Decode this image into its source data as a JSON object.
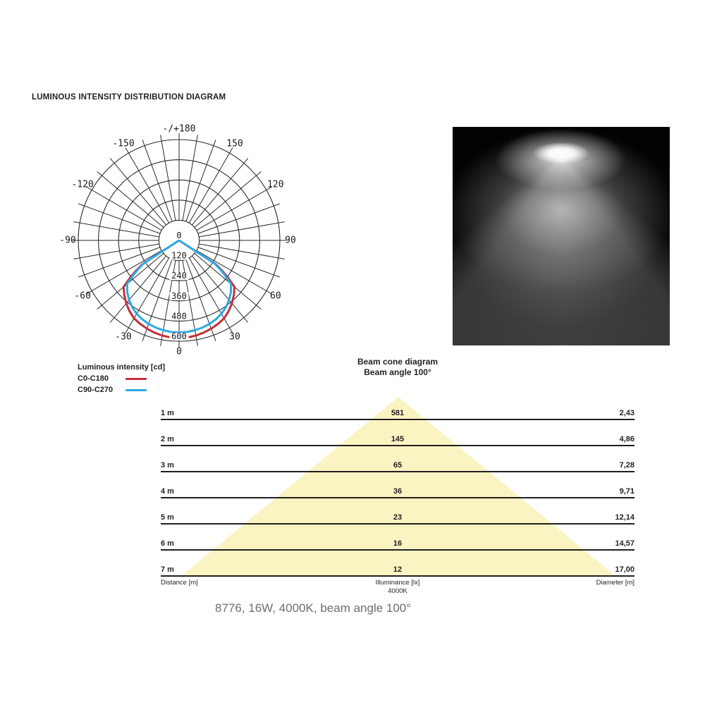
{
  "page": {
    "title": "LUMINOUS INTENSITY DISTRIBUTION DIAGRAM",
    "caption": "8776, 16W, 4000K, beam angle 100°"
  },
  "legend": {
    "title": "Luminous intensity [cd]",
    "series": [
      {
        "label": "C0-C180",
        "color": "#c5303a"
      },
      {
        "label": "C90-C270",
        "color": "#2baae2"
      }
    ]
  },
  "cone": {
    "title": "Beam cone diagram",
    "subtitle": "Beam angle 100°",
    "beam_color": "#faf4c2",
    "rows": [
      {
        "distance": "1 m",
        "illuminance": "581",
        "diameter": "2,43"
      },
      {
        "distance": "2 m",
        "illuminance": "145",
        "diameter": "4,86"
      },
      {
        "distance": "3 m",
        "illuminance": "65",
        "diameter": "7,28"
      },
      {
        "distance": "4 m",
        "illuminance": "36",
        "diameter": "9,71"
      },
      {
        "distance": "5 m",
        "illuminance": "23",
        "diameter": "12,14"
      },
      {
        "distance": "6 m",
        "illuminance": "16",
        "diameter": "14,57"
      },
      {
        "distance": "7 m",
        "illuminance": "12",
        "diameter": "17,00"
      }
    ],
    "footer": {
      "left": "Distance [m]",
      "center": "Illuminance [lx]",
      "center2": "4000K",
      "right": "Diameter [m]"
    }
  },
  "chart_data": [
    {
      "type": "line",
      "subtype": "polar-luminous-intensity",
      "title": "Luminous intensity [cd]",
      "radial_ticks_cd": [
        0,
        120,
        240,
        360,
        480,
        600
      ],
      "radial_max_cd": 600,
      "angle_step_deg": 10,
      "angle_labels": [
        {
          "deg": 0,
          "label": "0"
        },
        {
          "deg": 30,
          "label": "30"
        },
        {
          "deg": 60,
          "label": "60"
        },
        {
          "deg": 90,
          "label": "90"
        },
        {
          "deg": 120,
          "label": "120"
        },
        {
          "deg": 150,
          "label": "150"
        },
        {
          "deg": 180,
          "label": "-/+180"
        },
        {
          "deg": -30,
          "label": "-30"
        },
        {
          "deg": -60,
          "label": "-60"
        },
        {
          "deg": -90,
          "label": "-90"
        },
        {
          "deg": -120,
          "label": "-120"
        },
        {
          "deg": -150,
          "label": "-150"
        }
      ],
      "series": [
        {
          "name": "C0-C180",
          "color": "#c5303a",
          "points_deg_cd": [
            [
              -90,
              0
            ],
            [
              -57,
              261
            ],
            [
              -55,
              310
            ],
            [
              -53,
              360
            ],
            [
              -50,
              431
            ],
            [
              -45,
              461
            ],
            [
              -40,
              489
            ],
            [
              -35,
              514
            ],
            [
              -30,
              536
            ],
            [
              -25,
              548
            ],
            [
              -20,
              559
            ],
            [
              -15,
              568
            ],
            [
              -10,
              575
            ],
            [
              -5,
              580
            ],
            [
              0,
              581
            ],
            [
              5,
              580
            ],
            [
              10,
              575
            ],
            [
              15,
              568
            ],
            [
              20,
              559
            ],
            [
              25,
              548
            ],
            [
              30,
              536
            ],
            [
              35,
              514
            ],
            [
              40,
              489
            ],
            [
              45,
              461
            ],
            [
              50,
              431
            ],
            [
              53,
              360
            ],
            [
              55,
              310
            ],
            [
              57,
              261
            ],
            [
              90,
              0
            ]
          ]
        },
        {
          "name": "C90-C270",
          "color": "#2baae2",
          "points_deg_cd": [
            [
              -90,
              0
            ],
            [
              -57,
              250
            ],
            [
              -55,
              295
            ],
            [
              -53,
              338
            ],
            [
              -50,
              404
            ],
            [
              -45,
              436
            ],
            [
              -40,
              463
            ],
            [
              -35,
              486
            ],
            [
              -30,
              504
            ],
            [
              -25,
              518
            ],
            [
              -20,
              529
            ],
            [
              -15,
              537
            ],
            [
              -10,
              543
            ],
            [
              -5,
              547
            ],
            [
              0,
              548
            ],
            [
              5,
              547
            ],
            [
              10,
              543
            ],
            [
              15,
              537
            ],
            [
              20,
              529
            ],
            [
              25,
              518
            ],
            [
              30,
              504
            ],
            [
              35,
              486
            ],
            [
              40,
              463
            ],
            [
              45,
              436
            ],
            [
              50,
              404
            ],
            [
              53,
              338
            ],
            [
              55,
              295
            ],
            [
              57,
              250
            ],
            [
              90,
              0
            ]
          ]
        }
      ]
    },
    {
      "type": "table",
      "title": "Beam cone diagram",
      "subtitle": "Beam angle 100°",
      "columns": [
        "Distance [m]",
        "Illuminance [lx] 4000K",
        "Diameter [m]"
      ],
      "rows": [
        [
          "1 m",
          581,
          "2,43"
        ],
        [
          "2 m",
          145,
          "4,86"
        ],
        [
          "3 m",
          65,
          "7,28"
        ],
        [
          "4 m",
          36,
          "9,71"
        ],
        [
          "5 m",
          23,
          "12,14"
        ],
        [
          "6 m",
          16,
          "14,57"
        ],
        [
          "7 m",
          12,
          "17,00"
        ]
      ]
    }
  ]
}
